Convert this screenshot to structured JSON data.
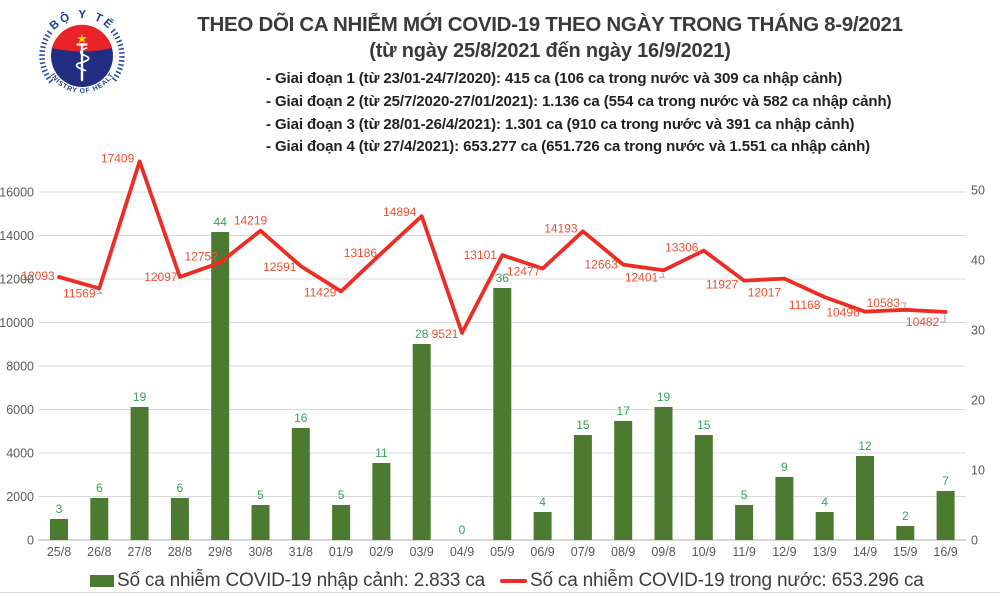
{
  "header": {
    "title_line1": "THEO DÕI CA NHIỄM MỚI COVID-19 THEO NGÀY TRONG THÁNG 8-9/2021",
    "title_line2": "(từ ngày 25/8/2021 đến ngày 16/9/2021)",
    "phase_lines": [
      "- Giai đoạn 1 (từ 23/01-24/7/2020): 415 ca (106 ca trong nước và 309 ca nhập cảnh)",
      "- Giai đoạn 2 (từ 25/7/2020-27/01/2021): 1.136 ca (554 ca trong nước và 582 ca nhập cảnh)",
      "- Giai đoạn 3 (từ 28/01-26/4/2021): 1.301 ca (910 ca trong nước và 391 ca nhập cảnh)",
      "- Giai đoạn 4 (từ 27/4/2021): 653.277 ca (651.726 ca trong nước và 1.551 ca nhập cảnh)"
    ]
  },
  "logo": {
    "top_text": "BỘ Y TẾ",
    "bottom_text": "MINISTRY OF HEALTH",
    "colors": {
      "ring_blue": "#2b4da0",
      "disc_navy": "#232e83",
      "flag_red": "#e8232a",
      "star_yellow": "#f8d00a"
    }
  },
  "chart_data": {
    "type": "bar+line combo",
    "categories": [
      "25/8",
      "26/8",
      "27/8",
      "28/8",
      "29/8",
      "30/8",
      "31/8",
      "01/9",
      "02/9",
      "03/9",
      "04/9",
      "05/9",
      "06/9",
      "07/9",
      "08/9",
      "09/8",
      "10/9",
      "11/9",
      "12/9",
      "13/9",
      "14/9",
      "15/9",
      "16/9"
    ],
    "series": [
      {
        "name": "Số ca nhiễm COVID-19 nhập cảnh",
        "type": "bar",
        "axis": "right",
        "color": "#4d7a31",
        "label_color": "#38a159",
        "values": [
          3,
          6,
          19,
          6,
          44,
          5,
          16,
          5,
          11,
          28,
          0,
          36,
          4,
          15,
          17,
          19,
          15,
          5,
          9,
          4,
          12,
          2,
          7
        ]
      },
      {
        "name": "Số ca nhiễm COVID-19 trong nước",
        "type": "line",
        "axis": "left",
        "color": "#ec2d25",
        "label_color": "#ee4f33",
        "values": [
          12093,
          11569,
          17409,
          12097,
          12752,
          14219,
          12591,
          11429,
          13186,
          14894,
          9521,
          13101,
          12477,
          14193,
          12663,
          12401,
          13306,
          11927,
          12017,
          11168,
          10496,
          10583,
          10482
        ]
      }
    ],
    "left_axis": {
      "applies_to": "line",
      "min": 0,
      "max": 17600,
      "tick_step": 2000,
      "ticks": [
        0,
        2000,
        4000,
        6000,
        8000,
        10000,
        12000,
        14000,
        16000
      ]
    },
    "right_axis": {
      "applies_to": "bar",
      "min": 0,
      "max": 55,
      "tick_step": 10,
      "ticks": [
        0,
        10,
        20,
        30,
        40,
        50
      ]
    },
    "grid": "horizontal only",
    "legend_position": "bottom",
    "label_layout": {
      "line_label_offsets": [
        [
          -21,
          -1,
          0
        ],
        [
          -20,
          5,
          1
        ],
        [
          -22,
          -3,
          0
        ],
        [
          -19,
          0,
          0
        ],
        [
          -19,
          -6,
          0
        ],
        [
          -10,
          -10,
          0
        ],
        [
          -21,
          1,
          0
        ],
        [
          -21,
          1,
          0
        ],
        [
          -21,
          0,
          0
        ],
        [
          -22,
          -4,
          0
        ],
        [
          -17,
          1,
          0
        ],
        [
          -22,
          0,
          0
        ],
        [
          -19,
          3,
          0
        ],
        [
          -22,
          -3,
          0
        ],
        [
          -22,
          0,
          0
        ],
        [
          -22,
          7,
          1
        ],
        [
          -22,
          -3,
          0
        ],
        [
          -22,
          4,
          0
        ],
        [
          -20,
          14,
          0
        ],
        [
          -20,
          8,
          0
        ],
        [
          -22,
          1,
          0
        ],
        [
          -22,
          -7,
          1
        ],
        [
          -23,
          10,
          1
        ]
      ]
    }
  },
  "legend": {
    "items": [
      {
        "label": "Số ca nhiễm COVID-19 nhập cảnh: 2.833 ca",
        "marker": "bar-swatch"
      },
      {
        "label": "Số ca nhiễm COVID-19 trong nước: 653.296 ca",
        "marker": "line-swatch"
      }
    ]
  },
  "ui_colors": {
    "grid_line": "#d9d9d9",
    "axis_line": "#bfbfbf",
    "tick_text": "#595959",
    "leader_line": "#a6a6a6"
  }
}
